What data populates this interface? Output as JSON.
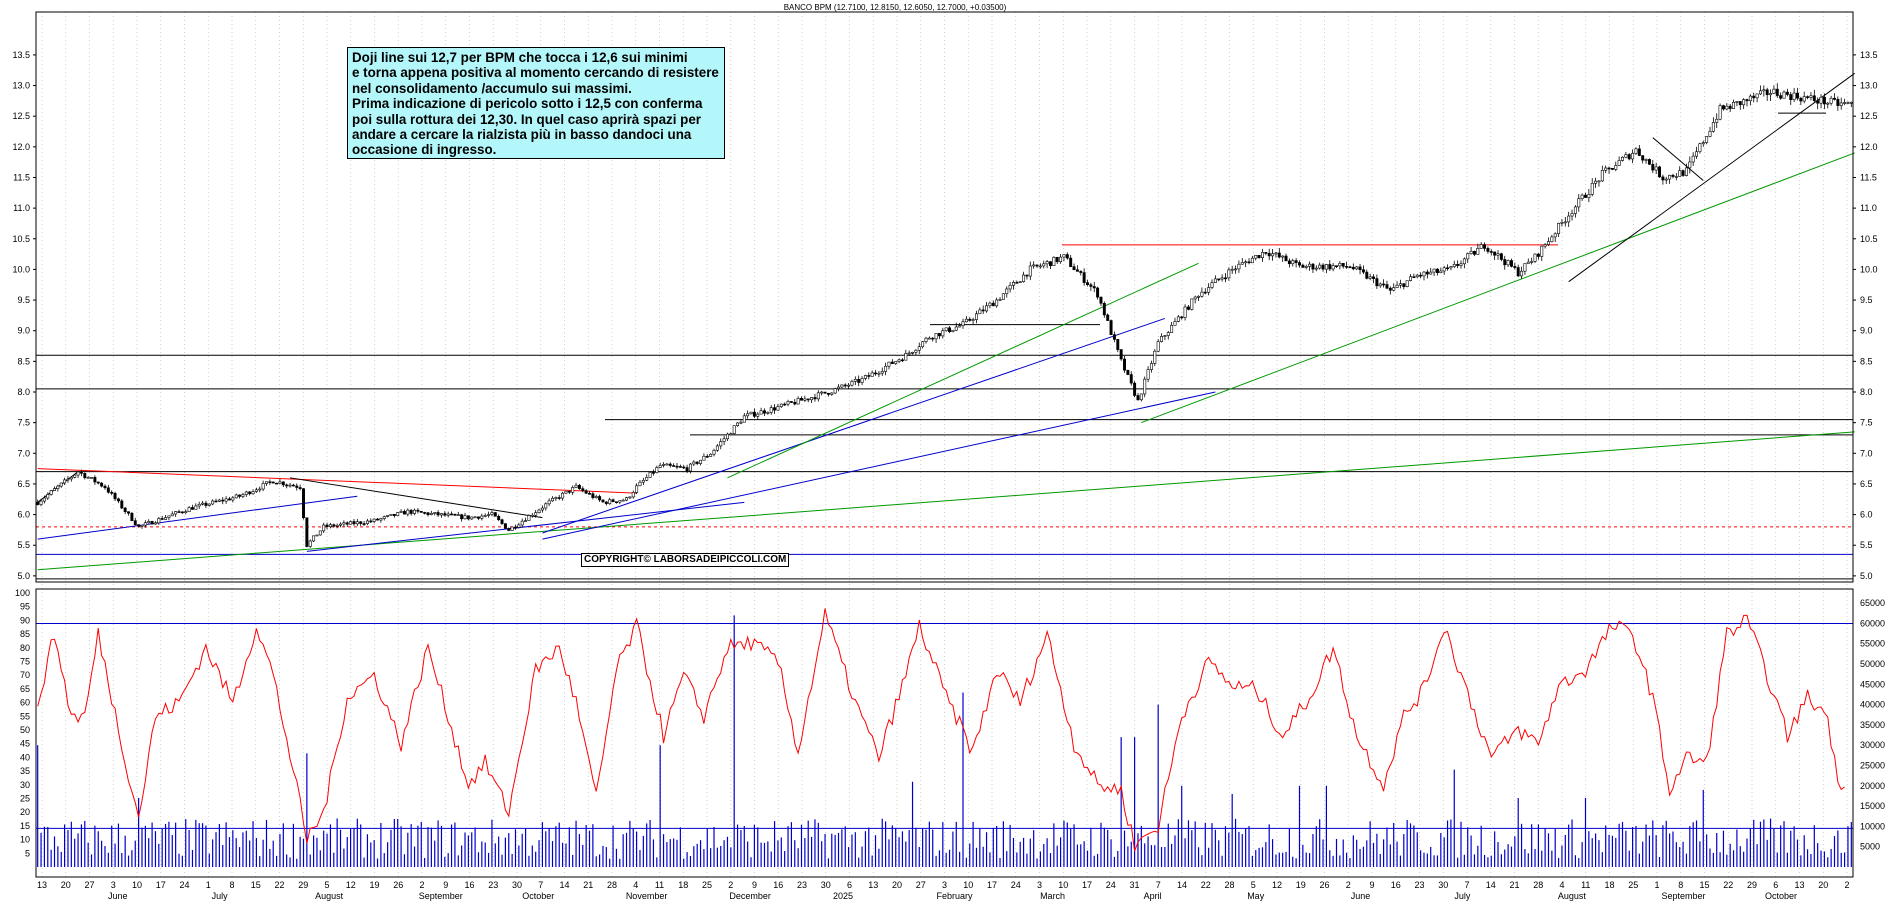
{
  "header": {
    "title": "BANCO BPM (12.7100, 12.8150, 12.6050, 12.7000, +0.03500)"
  },
  "annotation": {
    "lines": [
      "Doji line sui 12,7 per BPM che tocca i 12,6 sui minimi",
      "e torna appena positiva al momento cercando di resistere",
      "nel consolidamento /accumulo sui massimi.",
      "Prima indicazione di pericolo sotto i 12,5 con conferma",
      "poi sulla rottura dei 12,30. In quel caso aprirà spazi per",
      "andare a cercare la rialzista più in basso dandoci una",
      "occasione di ingresso."
    ]
  },
  "copyright": "COPYRIGHT© LABORSADEIPICCOLI.COM",
  "colors": {
    "candle": "#000000",
    "oscillator": "#ff0000",
    "volume": "#0000cc",
    "support_red": "#ff0000",
    "trend_blue": "#0000cc",
    "trend_green": "#009900",
    "annotation_bg": "#b3f7fb"
  },
  "chart_data": [
    {
      "type": "candlestick",
      "title": "BANCO BPM (12.7100, 12.8150, 12.6050, 12.7000, +0.03500)",
      "ylim": [
        4.9,
        14.2
      ],
      "y_ticks": [
        "5.0",
        "5.5",
        "6.0",
        "6.5",
        "7.0",
        "7.5",
        "8.0",
        "8.5",
        "9.0",
        "9.5",
        "10.0",
        "10.5",
        "11.0",
        "11.5",
        "12.0",
        "12.5",
        "13.0",
        "13.5"
      ],
      "x_day_ticks": [
        "13",
        "20",
        "27",
        "3",
        "10",
        "17",
        "24",
        "1",
        "8",
        "15",
        "22",
        "29",
        "5",
        "12",
        "19",
        "26",
        "2",
        "9",
        "16",
        "23",
        "30",
        "7",
        "14",
        "21",
        "28",
        "4",
        "11",
        "18",
        "25",
        "2",
        "9",
        "16",
        "23",
        "30",
        "6",
        "13",
        "20",
        "27",
        "3",
        "10",
        "17",
        "24",
        "3",
        "10",
        "17",
        "24",
        "31",
        "7",
        "14",
        "22",
        "28",
        "5",
        "12",
        "19",
        "26",
        "2",
        "9",
        "16",
        "23",
        "30",
        "7",
        "14",
        "21",
        "28",
        "4",
        "11",
        "18",
        "25",
        "1",
        "8",
        "15",
        "22",
        "29",
        "6",
        "13",
        "20",
        "2"
      ],
      "x_month_labels": [
        "June",
        "July",
        "August",
        "September",
        "October",
        "November",
        "December",
        "2025",
        "February",
        "March",
        "April",
        "May",
        "June",
        "July",
        "August",
        "September",
        "October"
      ],
      "closes_waypoints": [
        [
          0,
          6.2
        ],
        [
          12,
          6.7
        ],
        [
          20,
          6.45
        ],
        [
          30,
          5.8
        ],
        [
          45,
          6.1
        ],
        [
          60,
          6.3
        ],
        [
          70,
          6.55
        ],
        [
          78,
          6.45
        ],
        [
          80,
          5.5
        ],
        [
          85,
          5.8
        ],
        [
          100,
          5.9
        ],
        [
          110,
          6.05
        ],
        [
          128,
          5.95
        ],
        [
          135,
          6.0
        ],
        [
          140,
          5.75
        ],
        [
          152,
          6.2
        ],
        [
          160,
          6.45
        ],
        [
          168,
          6.2
        ],
        [
          175,
          6.25
        ],
        [
          178,
          6.45
        ],
        [
          185,
          6.8
        ],
        [
          193,
          6.75
        ],
        [
          200,
          7.0
        ],
        [
          210,
          7.6
        ],
        [
          220,
          7.75
        ],
        [
          235,
          8.0
        ],
        [
          245,
          8.2
        ],
        [
          258,
          8.6
        ],
        [
          265,
          8.9
        ],
        [
          275,
          9.1
        ],
        [
          285,
          9.5
        ],
        [
          295,
          10.0
        ],
        [
          305,
          10.2
        ],
        [
          315,
          9.6
        ],
        [
          322,
          8.5
        ],
        [
          327,
          7.85
        ],
        [
          333,
          8.8
        ],
        [
          345,
          9.6
        ],
        [
          355,
          10.0
        ],
        [
          365,
          10.3
        ],
        [
          375,
          10.05
        ],
        [
          390,
          10.05
        ],
        [
          402,
          9.65
        ],
        [
          410,
          9.9
        ],
        [
          420,
          10.0
        ],
        [
          430,
          10.4
        ],
        [
          440,
          9.95
        ],
        [
          445,
          10.2
        ],
        [
          455,
          10.9
        ],
        [
          465,
          11.55
        ],
        [
          475,
          11.95
        ],
        [
          483,
          11.5
        ],
        [
          490,
          11.6
        ],
        [
          500,
          12.6
        ],
        [
          515,
          12.9
        ],
        [
          530,
          12.75
        ],
        [
          535,
          12.7
        ]
      ],
      "levels": [
        {
          "y": 10.4,
          "color": "support_red"
        },
        {
          "y": 5.8,
          "color": "support_red",
          "dashed": true
        },
        {
          "y": 5.35,
          "color": "trend_blue"
        },
        {
          "y": 4.95,
          "color": "candle"
        },
        {
          "y": 6.7,
          "color": "candle"
        },
        {
          "y": 7.3,
          "color": "candle"
        },
        {
          "y": 7.55,
          "color": "candle"
        },
        {
          "y": 8.05,
          "color": "candle"
        },
        {
          "y": 8.6,
          "color": "candle"
        },
        {
          "y": 9.1,
          "color": "candle"
        },
        {
          "y": 12.55,
          "color": "candle"
        }
      ]
    },
    {
      "type": "line",
      "series": [
        {
          "values_ref": "oscillator"
        }
      ],
      "ylim": [
        0,
        100
      ],
      "y_ticks": [
        "5",
        "10",
        "15",
        "20",
        "25",
        "30",
        "35",
        "40",
        "45",
        "50",
        "55",
        "60",
        "65",
        "70",
        "75",
        "80",
        "85",
        "90",
        "95",
        "100"
      ],
      "levels": [
        10,
        90
      ],
      "oscillator_waypoints": [
        [
          0,
          60
        ],
        [
          5,
          85
        ],
        [
          10,
          55
        ],
        [
          14,
          55
        ],
        [
          18,
          85
        ],
        [
          25,
          45
        ],
        [
          30,
          18
        ],
        [
          35,
          55
        ],
        [
          42,
          60
        ],
        [
          50,
          80
        ],
        [
          58,
          60
        ],
        [
          65,
          88
        ],
        [
          70,
          70
        ],
        [
          76,
          35
        ],
        [
          80,
          10
        ],
        [
          85,
          20
        ],
        [
          92,
          62
        ],
        [
          100,
          70
        ],
        [
          108,
          45
        ],
        [
          116,
          80
        ],
        [
          122,
          55
        ],
        [
          128,
          30
        ],
        [
          133,
          38
        ],
        [
          140,
          20
        ],
        [
          148,
          72
        ],
        [
          155,
          80
        ],
        [
          160,
          60
        ],
        [
          166,
          25
        ],
        [
          172,
          72
        ],
        [
          178,
          88
        ],
        [
          186,
          48
        ],
        [
          192,
          70
        ],
        [
          198,
          55
        ],
        [
          205,
          80
        ],
        [
          212,
          82
        ],
        [
          220,
          75
        ],
        [
          226,
          42
        ],
        [
          234,
          92
        ],
        [
          243,
          60
        ],
        [
          250,
          40
        ],
        [
          258,
          70
        ],
        [
          262,
          88
        ],
        [
          270,
          62
        ],
        [
          278,
          42
        ],
        [
          285,
          72
        ],
        [
          292,
          60
        ],
        [
          300,
          85
        ],
        [
          308,
          45
        ],
        [
          315,
          30
        ],
        [
          322,
          28
        ],
        [
          326,
          8
        ],
        [
          333,
          15
        ],
        [
          340,
          55
        ],
        [
          348,
          75
        ],
        [
          355,
          66
        ],
        [
          362,
          65
        ],
        [
          370,
          48
        ],
        [
          378,
          62
        ],
        [
          385,
          80
        ],
        [
          392,
          48
        ],
        [
          400,
          30
        ],
        [
          406,
          55
        ],
        [
          412,
          65
        ],
        [
          418,
          88
        ],
        [
          426,
          60
        ],
        [
          432,
          40
        ],
        [
          440,
          50
        ],
        [
          446,
          45
        ],
        [
          452,
          66
        ],
        [
          460,
          72
        ],
        [
          468,
          88
        ],
        [
          474,
          85
        ],
        [
          480,
          62
        ],
        [
          485,
          28
        ],
        [
          490,
          40
        ],
        [
          496,
          38
        ],
        [
          502,
          85
        ],
        [
          508,
          90
        ],
        [
          514,
          70
        ],
        [
          520,
          48
        ],
        [
          526,
          62
        ],
        [
          532,
          55
        ],
        [
          535,
          30
        ],
        [
          537,
          32
        ]
      ],
      "volume_ylim": [
        0,
        67500
      ],
      "volume_ticks": [
        "5000",
        "10000",
        "15000",
        "20000",
        "25000",
        "30000",
        "35000",
        "40000",
        "45000",
        "50000",
        "55000",
        "60000",
        "65000"
      ],
      "volume_levels": [
        60000,
        9500
      ],
      "volume_spikes": [
        [
          0,
          30000
        ],
        [
          30,
          17000
        ],
        [
          80,
          28000
        ],
        [
          185,
          30000
        ],
        [
          207,
          62000
        ],
        [
          260,
          21000
        ],
        [
          275,
          43000
        ],
        [
          322,
          32000
        ],
        [
          326,
          32000
        ],
        [
          333,
          40000
        ],
        [
          340,
          20000
        ],
        [
          355,
          18000
        ],
        [
          375,
          20000
        ],
        [
          383,
          20000
        ],
        [
          421,
          24000
        ],
        [
          440,
          17000
        ],
        [
          460,
          17000
        ],
        [
          495,
          19000
        ]
      ],
      "volume_base": [
        2000,
        12000
      ]
    }
  ]
}
